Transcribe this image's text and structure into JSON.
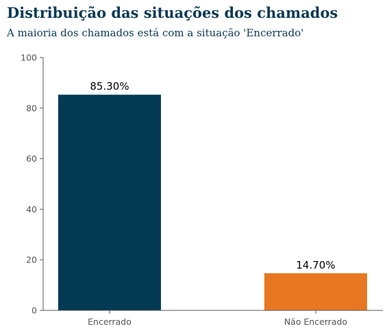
{
  "chart_data": {
    "type": "bar",
    "title": "Distribuição das situações dos chamados",
    "subtitle": "A maioria dos chamados está com a situação 'Encerrado'",
    "categories": [
      "Encerrado",
      "Não Encerrado"
    ],
    "values": [
      85.3,
      14.7
    ],
    "data_labels": [
      "85.30%",
      "14.70%"
    ],
    "colors": [
      "#023a54",
      "#e87722"
    ],
    "ylim": [
      0,
      100
    ],
    "yticks": [
      0,
      20,
      40,
      60,
      80,
      100
    ],
    "grid": false,
    "legend": "none"
  }
}
